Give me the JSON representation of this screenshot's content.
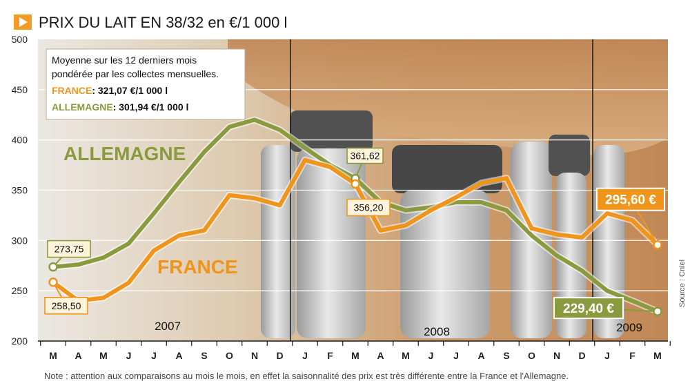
{
  "title": "PRIX DU LAIT EN 38/32 en €/1 000 l",
  "legend": {
    "line1": "Moyenne sur les 12 derniers mois",
    "line2": "pondérée par les collectes mensuelles.",
    "france_label": "FRANCE",
    "france_value": ": 321,07 €/1 000 l",
    "germany_label": "ALLEMAGNE",
    "germany_value": ": 301,94 €/1 000 l"
  },
  "note": "Note : attention aux comparaisons au mois le mois, en effet la saisonnalité des prix est très différente entre la France et l'Allemagne.",
  "source": "Source : Cniel",
  "colors": {
    "france": "#f0951c",
    "germany": "#8a9a3e",
    "title_marker": "#f39c1f",
    "grid": "#ffffff"
  },
  "chart_data": {
    "type": "line",
    "title": "PRIX DU LAIT EN 38/32 en €/1 000 l",
    "ylim": [
      200,
      500
    ],
    "yticks": [
      "500",
      "450",
      "400",
      "350",
      "300",
      "250",
      "200"
    ],
    "categories": [
      "M",
      "A",
      "M",
      "J",
      "J",
      "A",
      "S",
      "O",
      "N",
      "D",
      "J",
      "F",
      "M",
      "A",
      "M",
      "J",
      "J",
      "A",
      "S",
      "O",
      "N",
      "D",
      "J",
      "F",
      "M"
    ],
    "years": [
      "2007",
      "2008",
      "2009"
    ],
    "series": [
      {
        "name": "FRANCE",
        "color": "#f0951c",
        "values": [
          258.5,
          240,
          243,
          258,
          290,
          305,
          310,
          345,
          342,
          335,
          380,
          373,
          356.2,
          310,
          315,
          330,
          343,
          357,
          362,
          312,
          306,
          303,
          327,
          320,
          295.6
        ]
      },
      {
        "name": "ALLEMAGNE",
        "color": "#8a9a3e",
        "values": [
          273.75,
          276,
          283,
          297,
          327,
          358,
          388,
          413,
          420,
          410,
          392,
          375,
          361.62,
          338,
          330,
          333,
          338,
          338,
          330,
          305,
          285,
          270,
          250,
          240,
          229.4
        ]
      }
    ],
    "annotations": [
      {
        "series": "ALLEMAGNE",
        "index": 0,
        "text": "273,75"
      },
      {
        "series": "FRANCE",
        "index": 0,
        "text": "258,50"
      },
      {
        "series": "ALLEMAGNE",
        "index": 12,
        "text": "361,62"
      },
      {
        "series": "FRANCE",
        "index": 12,
        "text": "356,20"
      },
      {
        "series": "FRANCE",
        "index": 24,
        "text": "295,60 €"
      },
      {
        "series": "ALLEMAGNE",
        "index": 24,
        "text": "229,40 €"
      }
    ],
    "grid": true
  }
}
